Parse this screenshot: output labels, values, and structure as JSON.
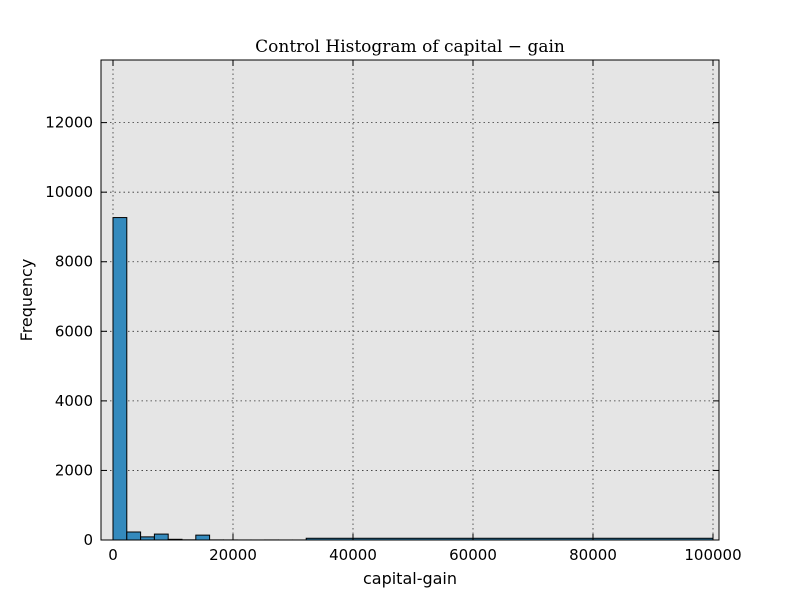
{
  "chart_data": {
    "type": "bar",
    "title": "Control Histogram of capital − gain",
    "xlabel": "capital-gain",
    "ylabel": "Frequency",
    "xlim": [
      -2000,
      101000
    ],
    "ylim": [
      0,
      13800
    ],
    "xticks": [
      "0",
      "20000",
      "40000",
      "60000",
      "80000",
      "100000"
    ],
    "yticks": [
      "0",
      "2000",
      "4000",
      "6000",
      "8000",
      "10000",
      "12000"
    ],
    "grid": true,
    "bar_color": "#348ABD",
    "plot_bg": "#E5E5E5",
    "bins": [
      {
        "x0": 0,
        "x1": 2300,
        "count": 9270
      },
      {
        "x0": 2300,
        "x1": 4600,
        "count": 230
      },
      {
        "x0": 4600,
        "x1": 6900,
        "count": 90
      },
      {
        "x0": 6900,
        "x1": 9200,
        "count": 170
      },
      {
        "x0": 9200,
        "x1": 11500,
        "count": 20
      },
      {
        "x0": 11500,
        "x1": 13800,
        "count": 5
      },
      {
        "x0": 13800,
        "x1": 16100,
        "count": 140
      },
      {
        "x0": 16100,
        "x1": 18400,
        "count": 3
      },
      {
        "x0": 18400,
        "x1": 20700,
        "count": 2
      },
      {
        "x0": 20700,
        "x1": 23000,
        "count": 1
      },
      {
        "x0": 23000,
        "x1": 25300,
        "count": 1
      },
      {
        "x0": 25300,
        "x1": 27600,
        "count": 2
      },
      {
        "x0": 27600,
        "x1": 29900,
        "count": 1
      },
      {
        "x0": 29900,
        "x1": 32200,
        "count": 1
      },
      {
        "x0": 32200,
        "x1": 99999,
        "count": 50
      }
    ]
  }
}
